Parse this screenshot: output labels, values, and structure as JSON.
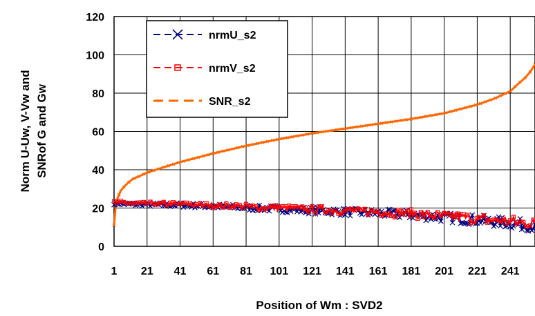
{
  "chart_data": {
    "type": "line",
    "title": "",
    "xlabel": "Position of Wm : SVD2",
    "ylabel_lines": [
      "Norm  U-Uw, V-Vw and",
      "SNRof G and Gw"
    ],
    "ylim": [
      0,
      120
    ],
    "xlim": [
      1,
      256
    ],
    "y_ticks": [
      0,
      20,
      40,
      60,
      80,
      100,
      120
    ],
    "x_tick_labels": [
      "1",
      "21",
      "41",
      "61",
      "81",
      "101",
      "121",
      "141",
      "161",
      "181",
      "201",
      "221",
      "241"
    ],
    "grid": "major gridlines on both axes",
    "legend_position": "top-left",
    "series": [
      {
        "name": "nrmU_s2",
        "color": "#000080",
        "marker": "x",
        "x": [
          1,
          5,
          10,
          20,
          40,
          60,
          80,
          100,
          120,
          140,
          160,
          180,
          200,
          220,
          240,
          250,
          256
        ],
        "y": [
          22.5,
          22.3,
          22,
          21.8,
          21.6,
          21,
          20.2,
          19.5,
          18.8,
          18,
          17.3,
          16.5,
          15.2,
          13.8,
          12.2,
          11.2,
          10.5
        ]
      },
      {
        "name": "nrmV_s2",
        "color": "#ff0000",
        "marker": "square",
        "x": [
          1,
          5,
          10,
          20,
          40,
          60,
          80,
          100,
          120,
          140,
          160,
          180,
          200,
          220,
          240,
          250,
          256
        ],
        "y": [
          23,
          23,
          22.6,
          22.4,
          22,
          21.4,
          20.8,
          20,
          19.3,
          18.7,
          18,
          17,
          15.8,
          14.5,
          13,
          12.2,
          11.5
        ]
      },
      {
        "name": "SNR_s2",
        "color": "#ff6600",
        "marker": "x-small",
        "x": [
          1,
          2,
          3,
          5,
          8,
          12,
          16,
          21,
          30,
          41,
          61,
          81,
          101,
          121,
          141,
          161,
          181,
          201,
          221,
          231,
          241,
          246,
          250,
          253,
          256
        ],
        "y": [
          11,
          21,
          25,
          29,
          32,
          35,
          36.5,
          38.5,
          41,
          44,
          48.5,
          52.5,
          56,
          59,
          61.5,
          64,
          66.5,
          69.5,
          74,
          77,
          81,
          85,
          88,
          91,
          95
        ]
      }
    ]
  }
}
